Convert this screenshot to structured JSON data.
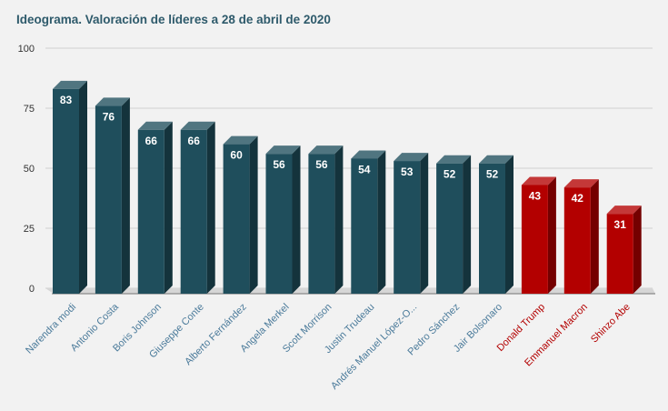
{
  "chart_data": {
    "type": "bar",
    "title": "Ideograma. Valoración de líderes a 28 de abril de 2020",
    "categories": [
      "Narendra modi",
      "Antonio Costa",
      "Boris Johnson",
      "Giuseppe Conte",
      "Alberto Fernández",
      "Angela Merkel",
      "Scott Morrison",
      "Justin Trudeau",
      "Andrés Manuel López-O...",
      "Pedro Sánchez",
      "Jair Bolsonaro",
      "Donald Trump",
      "Emmanuel Macron",
      "Shinzo Abe"
    ],
    "values": [
      83,
      76,
      66,
      66,
      60,
      56,
      56,
      54,
      53,
      52,
      52,
      43,
      42,
      31
    ],
    "ylim": [
      0,
      100
    ],
    "yticks": [
      0,
      25,
      50,
      75,
      100
    ],
    "grid": true,
    "legend": "none",
    "colors": {
      "primary": "#1f4e5c",
      "highlight": "#b30000",
      "label_primary": "#4a7a9a",
      "label_highlight": "#b30000"
    },
    "highlighted_categories": [
      "Donald Trump",
      "Emmanuel Macron",
      "Shinzo Abe"
    ]
  }
}
